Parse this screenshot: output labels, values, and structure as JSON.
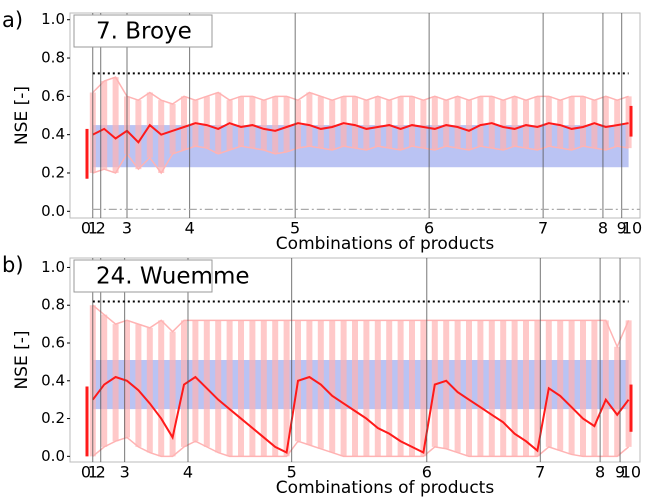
{
  "chart_data": [
    {
      "type": "range-line",
      "panel_label": "a)",
      "title": "7. Broye",
      "ylabel": "NSE [-]",
      "xlabel": "Combinations of products",
      "ylim": [
        -0.035,
        1.035
      ],
      "yticks": [
        {
          "value": 0,
          "label": "0.0"
        },
        {
          "value": 0.2,
          "label": "0.2"
        },
        {
          "value": 0.4,
          "label": "0.4"
        },
        {
          "value": 0.6,
          "label": "0.6"
        },
        {
          "value": 0.8,
          "label": "0.8"
        },
        {
          "value": 1,
          "label": "1.0"
        }
      ],
      "xlim": [
        0,
        100
      ],
      "xticks": [
        {
          "value": 2.8,
          "label": "0"
        },
        {
          "value": 4.0,
          "label": "1"
        },
        {
          "value": 5.4,
          "label": "2"
        },
        {
          "value": 10,
          "label": "3"
        },
        {
          "value": 21,
          "label": "4"
        },
        {
          "value": 39.5,
          "label": "5"
        },
        {
          "value": 63,
          "label": "6"
        },
        {
          "value": 83,
          "label": "7"
        },
        {
          "value": 93.5,
          "label": "8"
        },
        {
          "value": 96.8,
          "label": "9"
        },
        {
          "value": 98.6,
          "label": "10"
        }
      ],
      "band": [
        0.23,
        0.45
      ],
      "band_color": "#a9b4f0",
      "dotted": 0.72,
      "dashdot": 0.01,
      "left_range": [
        0.17,
        0.43
      ],
      "right_range": [
        0.39,
        0.55
      ],
      "x": [
        4,
        6,
        8,
        10,
        12,
        14,
        16,
        18,
        20,
        22,
        24,
        26,
        28,
        30,
        32,
        34,
        36,
        38,
        40,
        42,
        44,
        46,
        48,
        50,
        52,
        54,
        56,
        58,
        60,
        62,
        64,
        66,
        68,
        70,
        72,
        74,
        76,
        78,
        80,
        82,
        84,
        86,
        88,
        90,
        92,
        94,
        96,
        98
      ],
      "upper": [
        0.62,
        0.68,
        0.7,
        0.6,
        0.58,
        0.62,
        0.58,
        0.56,
        0.6,
        0.58,
        0.6,
        0.62,
        0.58,
        0.6,
        0.6,
        0.58,
        0.6,
        0.6,
        0.58,
        0.62,
        0.6,
        0.58,
        0.6,
        0.6,
        0.58,
        0.6,
        0.58,
        0.6,
        0.6,
        0.58,
        0.6,
        0.58,
        0.6,
        0.58,
        0.6,
        0.6,
        0.58,
        0.6,
        0.58,
        0.6,
        0.6,
        0.58,
        0.6,
        0.6,
        0.58,
        0.6,
        0.58,
        0.6
      ],
      "lower": [
        0.2,
        0.22,
        0.2,
        0.3,
        0.22,
        0.28,
        0.2,
        0.3,
        0.32,
        0.34,
        0.33,
        0.3,
        0.32,
        0.34,
        0.33,
        0.32,
        0.3,
        0.31,
        0.33,
        0.34,
        0.33,
        0.32,
        0.34,
        0.33,
        0.32,
        0.34,
        0.33,
        0.32,
        0.34,
        0.33,
        0.32,
        0.34,
        0.33,
        0.32,
        0.34,
        0.33,
        0.32,
        0.34,
        0.33,
        0.32,
        0.34,
        0.33,
        0.32,
        0.34,
        0.33,
        0.32,
        0.34,
        0.33
      ],
      "values": [
        0.4,
        0.43,
        0.38,
        0.42,
        0.36,
        0.45,
        0.4,
        0.42,
        0.44,
        0.46,
        0.45,
        0.43,
        0.46,
        0.44,
        0.45,
        0.43,
        0.42,
        0.44,
        0.46,
        0.45,
        0.43,
        0.44,
        0.46,
        0.45,
        0.43,
        0.44,
        0.45,
        0.43,
        0.45,
        0.44,
        0.43,
        0.45,
        0.44,
        0.42,
        0.45,
        0.46,
        0.44,
        0.43,
        0.45,
        0.44,
        0.46,
        0.45,
        0.43,
        0.44,
        0.46,
        0.44,
        0.45,
        0.46
      ],
      "color": "#ff1a1a",
      "range_color": "#ffb3b3"
    },
    {
      "type": "range-line",
      "panel_label": "b)",
      "title": "24. Wuemme",
      "ylabel": "NSE [-]",
      "xlabel": "Combinations of products",
      "ylim": [
        -0.03,
        1.05
      ],
      "yticks": [
        {
          "value": 0,
          "label": "0.0"
        },
        {
          "value": 0.2,
          "label": "0.2"
        },
        {
          "value": 0.4,
          "label": "0.4"
        },
        {
          "value": 0.6,
          "label": "0.6"
        },
        {
          "value": 0.8,
          "label": "0.8"
        },
        {
          "value": 1,
          "label": "1.0"
        }
      ],
      "xlim": [
        0,
        100
      ],
      "xticks": [
        {
          "value": 2.8,
          "label": "0"
        },
        {
          "value": 4.0,
          "label": "1"
        },
        {
          "value": 5.4,
          "label": "2"
        },
        {
          "value": 9.6,
          "label": "3"
        },
        {
          "value": 20.7,
          "label": "4"
        },
        {
          "value": 38.9,
          "label": "5"
        },
        {
          "value": 62.6,
          "label": "6"
        },
        {
          "value": 82.5,
          "label": "7"
        },
        {
          "value": 93,
          "label": "8"
        },
        {
          "value": 96.5,
          "label": "9"
        },
        {
          "value": 98.4,
          "label": "10"
        }
      ],
      "band": [
        0.25,
        0.51
      ],
      "band_color": "#a9b4f0",
      "dotted": 0.82,
      "dashdot": null,
      "left_range": [
        0,
        0.37
      ],
      "right_range": [
        0.13,
        0.38
      ],
      "x": [
        4,
        6,
        8,
        10,
        12,
        14,
        16,
        18,
        20,
        22,
        24,
        26,
        28,
        30,
        32,
        34,
        36,
        38,
        40,
        42,
        44,
        46,
        48,
        50,
        52,
        54,
        56,
        58,
        60,
        62,
        64,
        66,
        68,
        70,
        72,
        74,
        76,
        78,
        80,
        82,
        84,
        86,
        88,
        90,
        92,
        94,
        96,
        98
      ],
      "upper": [
        0.8,
        0.75,
        0.7,
        0.72,
        0.7,
        0.68,
        0.72,
        0.66,
        0.72,
        0.72,
        0.72,
        0.72,
        0.72,
        0.72,
        0.72,
        0.72,
        0.72,
        0.72,
        0.72,
        0.72,
        0.72,
        0.72,
        0.72,
        0.72,
        0.72,
        0.72,
        0.72,
        0.72,
        0.72,
        0.72,
        0.72,
        0.72,
        0.72,
        0.72,
        0.72,
        0.72,
        0.72,
        0.72,
        0.72,
        0.72,
        0.72,
        0.72,
        0.72,
        0.72,
        0.72,
        0.72,
        0.58,
        0.72
      ],
      "lower": [
        0,
        0.05,
        0.08,
        0.1,
        0.05,
        0.02,
        0,
        0,
        0.05,
        0.08,
        0.05,
        0.02,
        0,
        0,
        0,
        0,
        0,
        0,
        0.08,
        0.06,
        0.04,
        0.02,
        0,
        0,
        0,
        0,
        0,
        0,
        0,
        0,
        0.05,
        0.04,
        0.02,
        0,
        0,
        0,
        0,
        0,
        0,
        0,
        0.05,
        0.03,
        0.01,
        0,
        0,
        0,
        0,
        0.05
      ],
      "values": [
        0.3,
        0.38,
        0.42,
        0.4,
        0.35,
        0.28,
        0.2,
        0.1,
        0.38,
        0.42,
        0.36,
        0.3,
        0.25,
        0.2,
        0.15,
        0.1,
        0.05,
        0.02,
        0.4,
        0.42,
        0.38,
        0.32,
        0.28,
        0.24,
        0.2,
        0.15,
        0.12,
        0.08,
        0.05,
        0.02,
        0.38,
        0.4,
        0.34,
        0.3,
        0.26,
        0.22,
        0.18,
        0.12,
        0.08,
        0.03,
        0.36,
        0.32,
        0.26,
        0.2,
        0.16,
        0.3,
        0.22,
        0.3
      ],
      "color": "#ff1a1a",
      "range_color": "#ffb3b3"
    }
  ]
}
